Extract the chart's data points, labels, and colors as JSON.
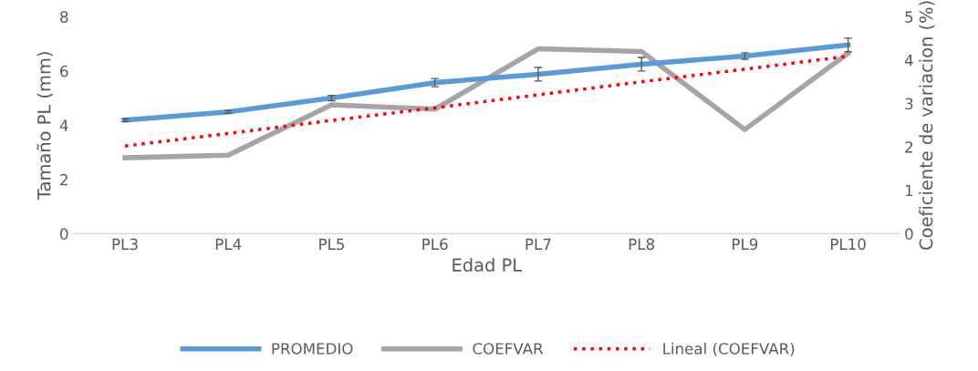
{
  "chart_data": {
    "type": "line",
    "xlabel": "Edad PL",
    "ylabel": "Tamaño PL (mm)",
    "y2label": "Coeficiente de variacion (%)",
    "categories": [
      "PL3",
      "PL4",
      "PL5",
      "PL6",
      "PL7",
      "PL8",
      "PL9",
      "PL10"
    ],
    "series": [
      {
        "name": "PROMEDIO",
        "color": "#5b9bd5",
        "values": [
          4.19,
          4.49,
          5.0,
          5.57,
          5.88,
          6.25,
          6.55,
          6.96
        ],
        "errors": [
          0.05,
          0.05,
          0.1,
          0.15,
          0.25,
          0.25,
          0.12,
          0.25
        ]
      },
      {
        "name": "COEFVAR",
        "color": "#a5a5a5",
        "axis": "y2",
        "values": [
          1.75,
          1.81,
          2.97,
          2.87,
          4.26,
          4.2,
          2.4,
          4.16
        ]
      },
      {
        "name": "Lineal (COEFVAR)",
        "color": "#ff0000",
        "axis": "y2",
        "line_style": "dotted",
        "values": [
          2.02,
          2.31,
          2.61,
          2.9,
          3.2,
          3.5,
          3.79,
          4.09
        ]
      }
    ],
    "ylim": [
      0,
      8
    ],
    "yticks": [
      0,
      2,
      4,
      6,
      8
    ],
    "y2lim": [
      0,
      5
    ],
    "y2ticks": [
      0,
      1,
      2,
      3,
      4,
      5
    ],
    "grid": false,
    "legend": "bottom",
    "marker": "none"
  }
}
